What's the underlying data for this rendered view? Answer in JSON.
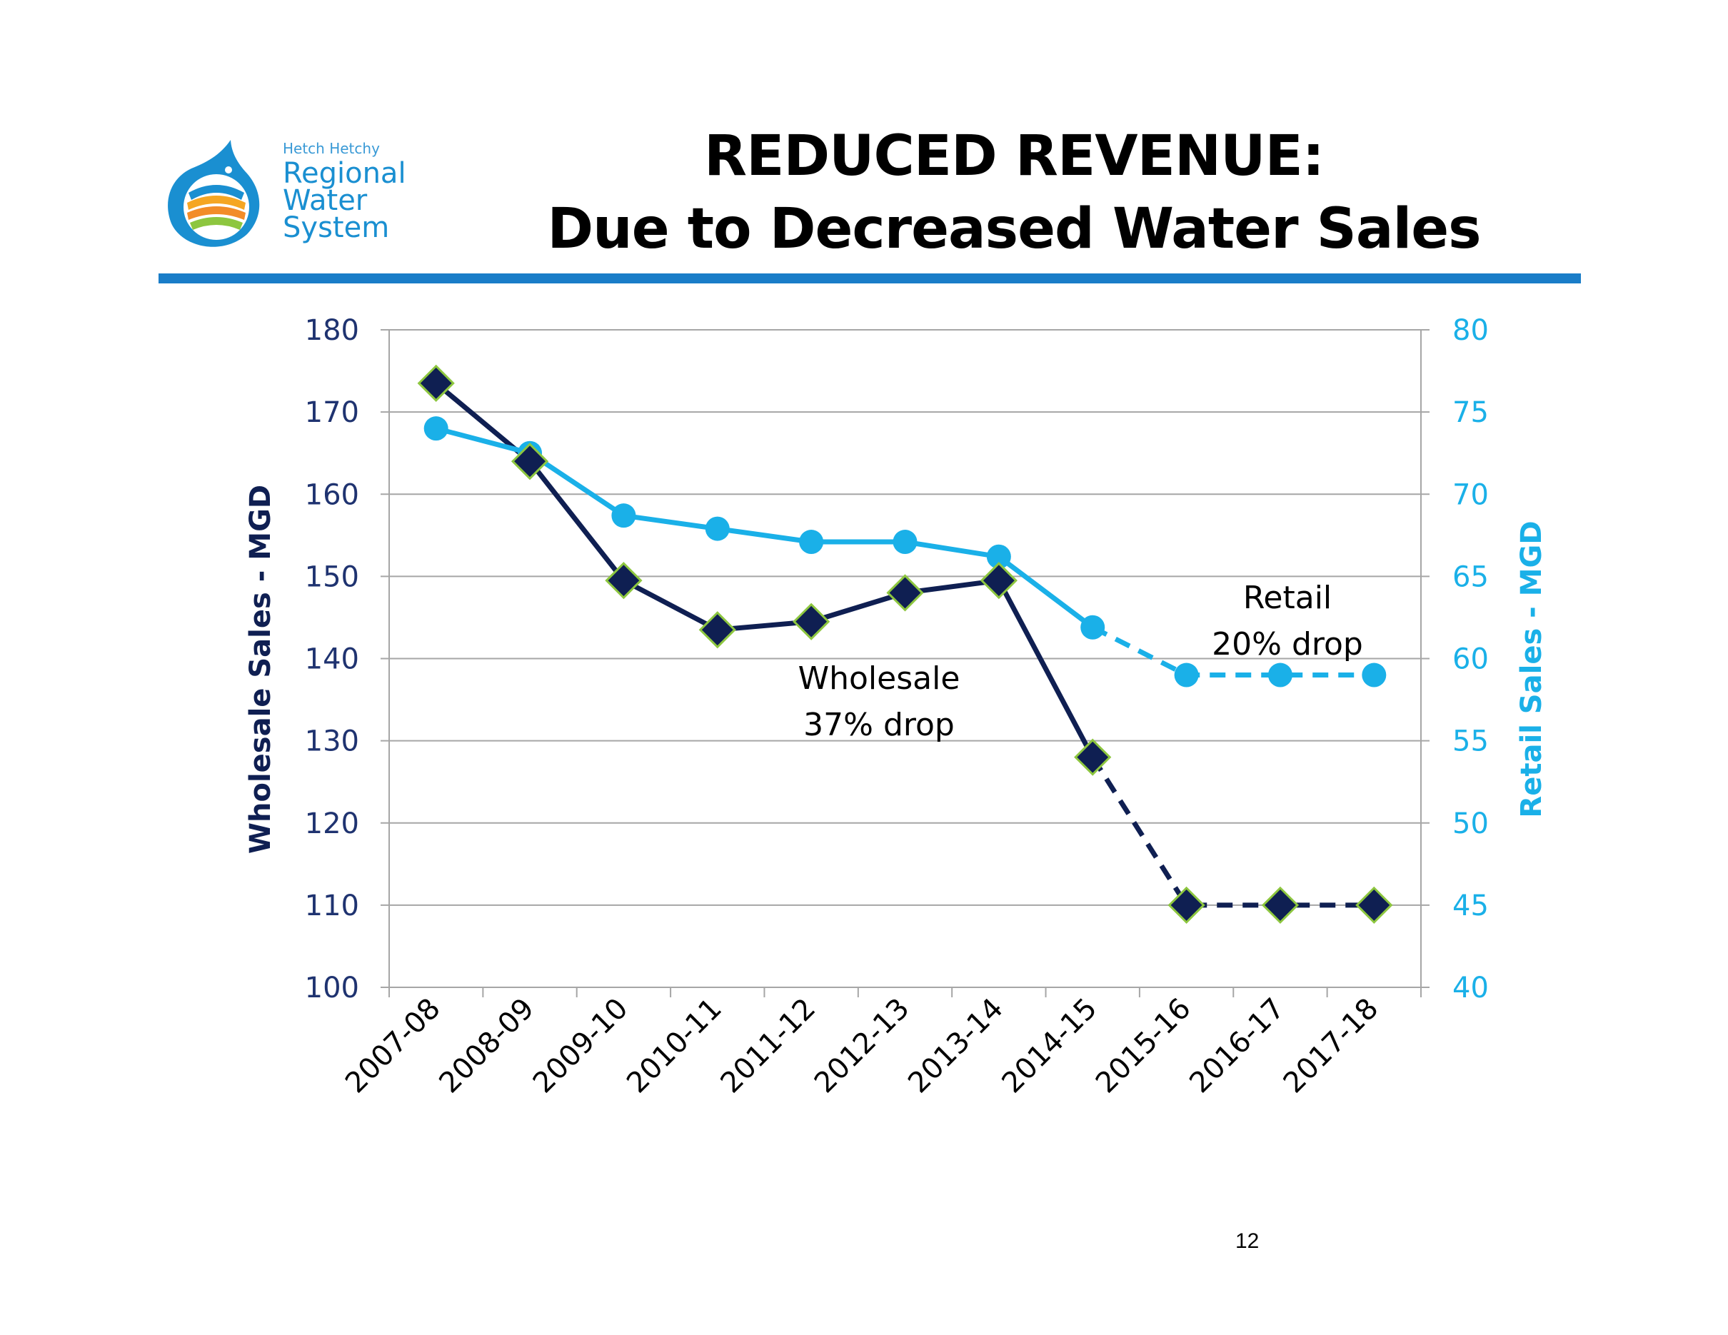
{
  "logo": {
    "line1": "Hetch Hetchy",
    "line2": "Regional",
    "line3": "Water",
    "line4": "System"
  },
  "title": {
    "line1": "REDUCED REVENUE:",
    "line2": "Due to  Decreased Water Sales"
  },
  "page_number": "12",
  "colors": {
    "wholesale": "#0f1f52",
    "retail": "#1ab0e8",
    "marker_outline": "#8dc63f",
    "accent_rule": "#1a7dc8"
  },
  "chart_data": {
    "type": "line",
    "categories": [
      "2007-08",
      "2008-09",
      "2009-10",
      "2010-11",
      "2011-12",
      "2012-13",
      "2013-14",
      "2014-15",
      "2015-16",
      "2016-17",
      "2017-18"
    ],
    "series": [
      {
        "axis": "left",
        "values": [
          173.5,
          164,
          149.5,
          143.5,
          144.5,
          148,
          149.5,
          128,
          110,
          110,
          110
        ],
        "marker": "diamond",
        "dashed_from_index": 7
      },
      {
        "axis": "right",
        "values": [
          74,
          72.5,
          68.7,
          67.9,
          67.1,
          67.1,
          66.2,
          61.9,
          59,
          59,
          59
        ],
        "marker": "circle",
        "dashed_from_index": 7
      }
    ],
    "ylabel_left": "Wholesale Sales - MGD",
    "ylabel_right": "Retail Sales - MGD",
    "ylim_left": [
      100,
      180
    ],
    "ylim_right": [
      40,
      80
    ],
    "yticks_left": [
      100,
      110,
      120,
      130,
      140,
      150,
      160,
      170,
      180
    ],
    "yticks_right": [
      40,
      45,
      50,
      55,
      60,
      65,
      70,
      75,
      80
    ],
    "grid": true,
    "annotations": [
      {
        "line1": "Wholesale",
        "line2": "37% drop"
      },
      {
        "line1": "Retail",
        "line2": "20% drop"
      }
    ]
  }
}
